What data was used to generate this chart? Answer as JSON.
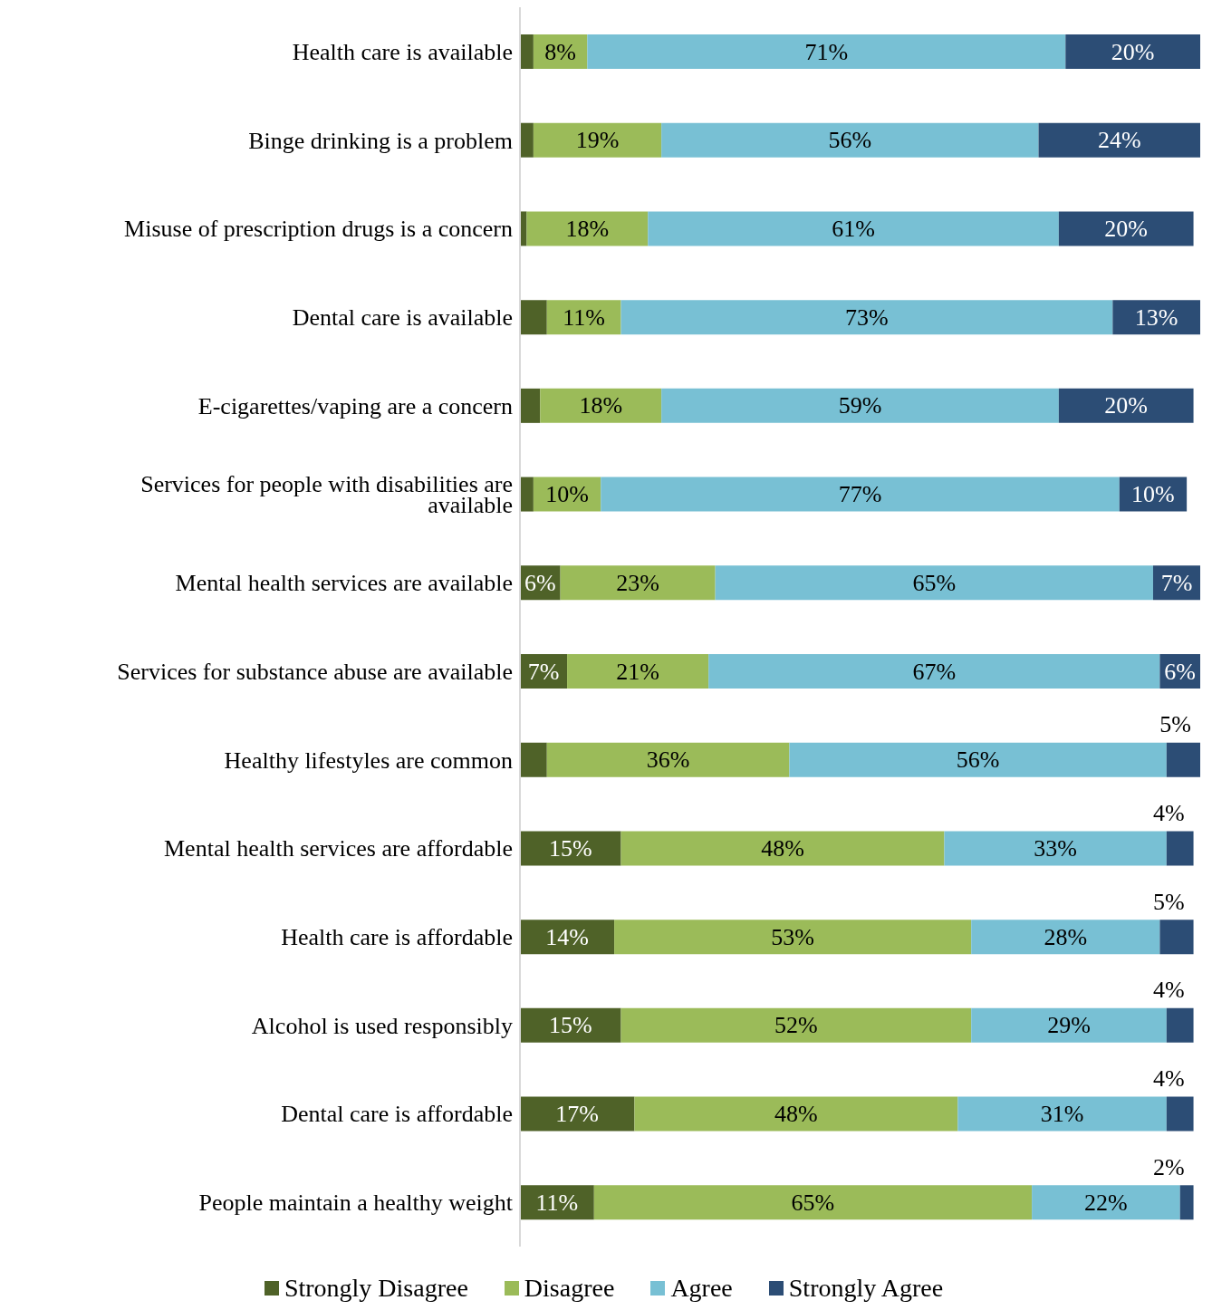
{
  "chart_data": {
    "type": "bar",
    "orientation": "horizontal",
    "stacked": true,
    "legend": "bottom",
    "categories": [
      "Health care is available",
      "Binge drinking is a problem",
      "Misuse of prescription drugs is a concern",
      "Dental care is available",
      "E-cigarettes/vaping are a concern",
      "Services for people with disabilities are available",
      "Mental health services are available",
      "Services for substance abuse are available",
      "Healthy lifestyles are common",
      "Mental health services are affordable",
      "Health care is affordable",
      "Alcohol is used responsibly",
      "Dental care is affordable",
      "People maintain a healthy weight"
    ],
    "series": [
      {
        "name": "Strongly Disagree",
        "color": "#4f6228",
        "values": [
          2,
          2,
          1,
          4,
          3,
          2,
          6,
          7,
          4,
          15,
          14,
          15,
          17,
          11
        ],
        "value_labels": [
          null,
          null,
          null,
          null,
          null,
          null,
          "6%",
          "7%",
          null,
          "15%",
          "14%",
          "15%",
          "17%",
          "11%"
        ]
      },
      {
        "name": "Disagree",
        "color": "#9bbb59",
        "values": [
          8,
          19,
          18,
          11,
          18,
          10,
          23,
          21,
          36,
          48,
          53,
          52,
          48,
          65
        ],
        "value_labels": [
          "8%",
          "19%",
          "18%",
          "11%",
          "18%",
          "10%",
          "23%",
          "21%",
          "36%",
          "48%",
          "53%",
          "52%",
          "48%",
          "65%"
        ]
      },
      {
        "name": "Agree",
        "color": "#78c0d4",
        "values": [
          71,
          56,
          61,
          73,
          59,
          77,
          65,
          67,
          56,
          33,
          28,
          29,
          31,
          22
        ],
        "value_labels": [
          "71%",
          "56%",
          "61%",
          "73%",
          "59%",
          "77%",
          "65%",
          "67%",
          "56%",
          "33%",
          "28%",
          "29%",
          "31%",
          "22%"
        ]
      },
      {
        "name": "Strongly Agree",
        "color": "#2c4d75",
        "values": [
          20,
          24,
          20,
          13,
          20,
          10,
          7,
          6,
          5,
          4,
          5,
          4,
          4,
          2
        ],
        "value_labels": [
          "20%",
          "24%",
          "20%",
          "13%",
          "20%",
          "10%",
          "7%",
          "6%",
          "5%",
          "4%",
          "5%",
          "4%",
          "4%",
          "2%"
        ]
      }
    ]
  }
}
